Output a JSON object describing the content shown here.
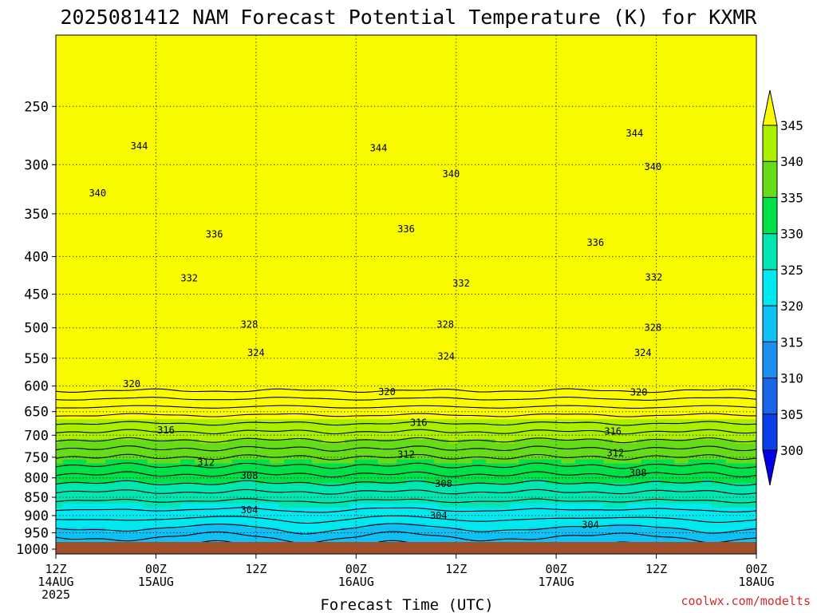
{
  "chart_data": {
    "type": "heatmap",
    "title": "2025081412 NAM Forecast Potential Temperature (K) for KXMR",
    "xlabel": "Forecast Time (UTC)",
    "ylabel": "",
    "y_axis": {
      "scale": "log",
      "reversed": true,
      "range": [
        1015,
        200
      ],
      "ticks": [
        250,
        300,
        350,
        400,
        450,
        500,
        550,
        600,
        650,
        700,
        750,
        800,
        850,
        900,
        950,
        1000
      ],
      "tick_labels": [
        "250",
        "300",
        "350",
        "400",
        "450",
        "500",
        "550",
        "600",
        "650",
        "700",
        "750",
        "800",
        "850",
        "900",
        "950",
        "1000"
      ]
    },
    "x_axis": {
      "unit": "forecast hour",
      "range": [
        0,
        84
      ],
      "ticks": [
        0,
        12,
        24,
        36,
        48,
        60,
        72,
        84
      ],
      "tick_labels": [
        [
          "12Z",
          "14AUG",
          "2025"
        ],
        [
          "00Z",
          "15AUG"
        ],
        [
          "12Z"
        ],
        [
          "00Z",
          "16AUG"
        ],
        [
          "12Z"
        ],
        [
          "00Z",
          "17AUG"
        ],
        [
          "12Z"
        ],
        [
          "00Z",
          "18AUG"
        ]
      ]
    },
    "grid": "dotted",
    "colorbar": {
      "placement": "right",
      "levels": [
        300,
        305,
        310,
        315,
        320,
        325,
        330,
        335,
        340,
        345
      ],
      "labels": [
        "300",
        "305",
        "310",
        "315",
        "320",
        "325",
        "330",
        "335",
        "340",
        "345"
      ],
      "colors": [
        "#0000e8",
        "#0a3ee6",
        "#1a66e8",
        "#1c90ee",
        "#10c0f4",
        "#00e8f0",
        "#00e6b0",
        "#00e048",
        "#66dc18",
        "#aaee00",
        "#fafa00"
      ],
      "extend": "both"
    },
    "contour_interval": 2,
    "contour_labels": [
      {
        "value": 344,
        "x": 10.0,
        "p": 283
      },
      {
        "value": 344,
        "x": 38.7,
        "p": 285
      },
      {
        "value": 344,
        "x": 69.4,
        "p": 272
      },
      {
        "value": 340,
        "x": 5.0,
        "p": 328
      },
      {
        "value": 340,
        "x": 47.4,
        "p": 309
      },
      {
        "value": 340,
        "x": 71.6,
        "p": 302
      },
      {
        "value": 336,
        "x": 19.0,
        "p": 373
      },
      {
        "value": 336,
        "x": 42.0,
        "p": 367
      },
      {
        "value": 336,
        "x": 64.7,
        "p": 383
      },
      {
        "value": 332,
        "x": 16.0,
        "p": 428
      },
      {
        "value": 332,
        "x": 48.6,
        "p": 435
      },
      {
        "value": 332,
        "x": 71.7,
        "p": 427
      },
      {
        "value": 328,
        "x": 23.2,
        "p": 495
      },
      {
        "value": 328,
        "x": 46.7,
        "p": 495
      },
      {
        "value": 328,
        "x": 71.6,
        "p": 500
      },
      {
        "value": 324,
        "x": 24.0,
        "p": 541
      },
      {
        "value": 324,
        "x": 46.8,
        "p": 547
      },
      {
        "value": 324,
        "x": 70.4,
        "p": 541
      },
      {
        "value": 320,
        "x": 9.1,
        "p": 596
      },
      {
        "value": 320,
        "x": 39.7,
        "p": 611
      },
      {
        "value": 320,
        "x": 69.9,
        "p": 612
      },
      {
        "value": 316,
        "x": 13.2,
        "p": 689
      },
      {
        "value": 316,
        "x": 43.5,
        "p": 673
      },
      {
        "value": 316,
        "x": 66.8,
        "p": 692
      },
      {
        "value": 312,
        "x": 18.0,
        "p": 762
      },
      {
        "value": 312,
        "x": 42.0,
        "p": 744
      },
      {
        "value": 312,
        "x": 67.1,
        "p": 740
      },
      {
        "value": 308,
        "x": 23.2,
        "p": 795
      },
      {
        "value": 308,
        "x": 46.5,
        "p": 815
      },
      {
        "value": 308,
        "x": 69.8,
        "p": 788
      },
      {
        "value": 304,
        "x": 23.2,
        "p": 885
      },
      {
        "value": 304,
        "x": 45.9,
        "p": 900
      },
      {
        "value": 304,
        "x": 64.1,
        "p": 926
      }
    ]
  },
  "credit": "coolwx.com/modelts",
  "colors": {
    "ground": "#a0502a",
    "contour": "#000000",
    "credit": "#d22a2a"
  }
}
